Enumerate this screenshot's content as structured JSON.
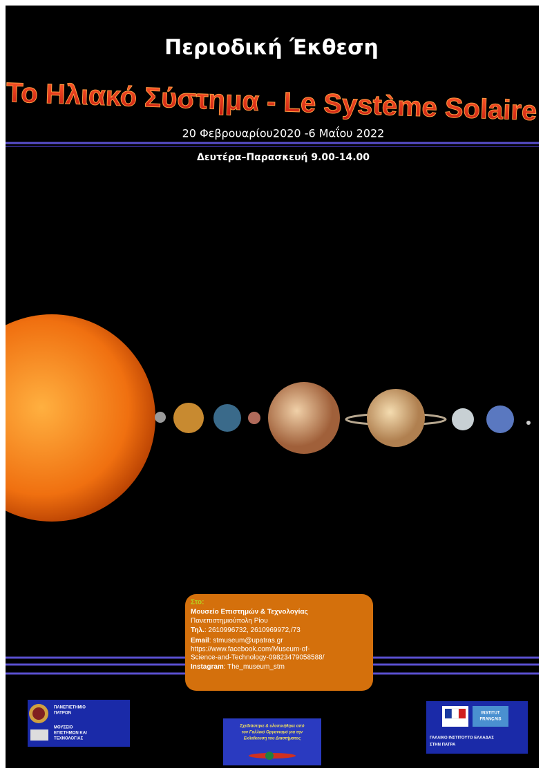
{
  "header": {
    "title": "Περιοδική Έκθεση",
    "subtitle": "Το Ηλιακό Σύστημα - Le Système Solaire",
    "dates": "20 Φεβρουαρίου2020 -6 Μαΐου 2022",
    "hours": "Δευτέρα–Παρασκευή 9.00-14.00"
  },
  "info": {
    "at": "Στο:",
    "museum": "Μουσείο Επιστημών & Τεχνολογίας",
    "address": "Πανεπιστημιούπολη Ρίου",
    "phone": {
      "label": "Τηλ.",
      "value": ": 2610996732, 2610969972,/73"
    },
    "email": {
      "label": "Email",
      "value": ": stmuseum@upatras.gr"
    },
    "facebook": [
      "https://www.facebook.com/Museum-of-",
      "Science-and-Technology-09823479058588/"
    ],
    "instagram": {
      "label": "Instagram",
      "value": ": The_museum_stm"
    }
  },
  "logos": {
    "left": [
      "ΠΑΝΕΠΙΣΤΗΜΙΟ",
      "ΠΑΤΡΩΝ",
      "ΜΟΥΣΕΙΟ",
      "ΕΠΙΣΤΗΜΩΝ ΚΑΙ",
      "ΤΕΧΝΟΛΟΓΙΑΣ"
    ],
    "center": [
      "Σχεδιάστηκε & υλοποιήθηκε από",
      "τον Γαλλικό Οργανισμό για την",
      "Εκλαΐκευση του Διαστήματος"
    ],
    "right": [
      "INSTITUT",
      "FRANÇAIS",
      "ΓΑΛΛΙΚΟ ΙΝΣΤΙΤΟΥΤΟ ΕΛΛΑΔΑΣ",
      "ΣΤΗΝ ΠΑΤΡΑ"
    ]
  }
}
